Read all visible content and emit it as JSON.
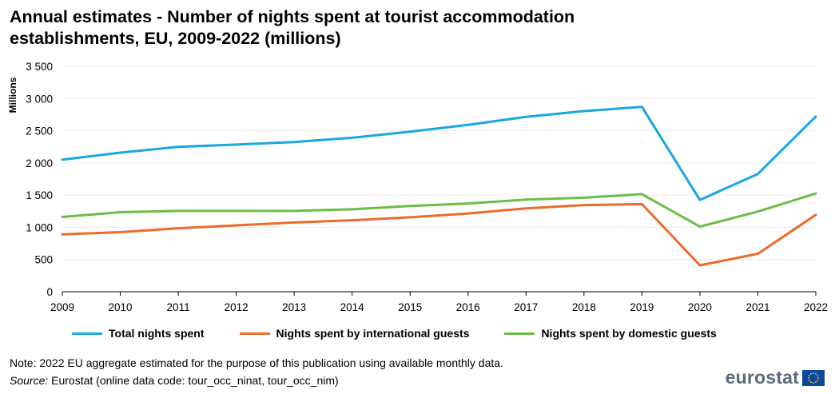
{
  "title_line1": "Annual estimates - Number of nights spent at tourist accommodation",
  "title_line2": "establishments, EU, 2009-2022 (millions)",
  "note": "Note: 2022 EU aggregate estimated for the purpose of this publication using available monthly data.",
  "source_label": "Source:",
  "source_text": " Eurostat (online data code: tour_occ_ninat, tour_occ_nim)",
  "logo_text": "eurostat",
  "colors": {
    "total": "#1aa7e0",
    "international": "#ee6a2a",
    "domestic": "#6cbd45",
    "grid": "#d9d9d9"
  },
  "chart_data": {
    "type": "line",
    "ylabel": "Millions",
    "ylim": [
      0,
      3500
    ],
    "yticks": [
      0,
      500,
      1000,
      1500,
      2000,
      2500,
      3000,
      3500
    ],
    "ytick_labels": [
      "0",
      "500",
      "1 000",
      "1 500",
      "2 000",
      "2 500",
      "3 000",
      "3 500"
    ],
    "x": [
      "2009",
      "2010",
      "2011",
      "2012",
      "2013",
      "2014",
      "2015",
      "2016",
      "2017",
      "2018",
      "2019",
      "2020",
      "2021",
      "2022"
    ],
    "grid": true,
    "legend_position": "bottom",
    "series": [
      {
        "name": "Total nights spent",
        "key": "total",
        "values": [
          2050,
          2160,
          2250,
          2285,
          2325,
          2390,
          2485,
          2590,
          2715,
          2805,
          2870,
          1425,
          1830,
          2720
        ]
      },
      {
        "name": "Nights spent by international guests",
        "key": "international",
        "values": [
          890,
          925,
          985,
          1030,
          1075,
          1110,
          1155,
          1215,
          1295,
          1345,
          1360,
          410,
          590,
          1195
        ]
      },
      {
        "name": "Nights spent by domestic guests",
        "key": "domestic",
        "values": [
          1160,
          1235,
          1255,
          1255,
          1255,
          1280,
          1330,
          1370,
          1430,
          1460,
          1515,
          1010,
          1245,
          1525
        ]
      }
    ]
  }
}
